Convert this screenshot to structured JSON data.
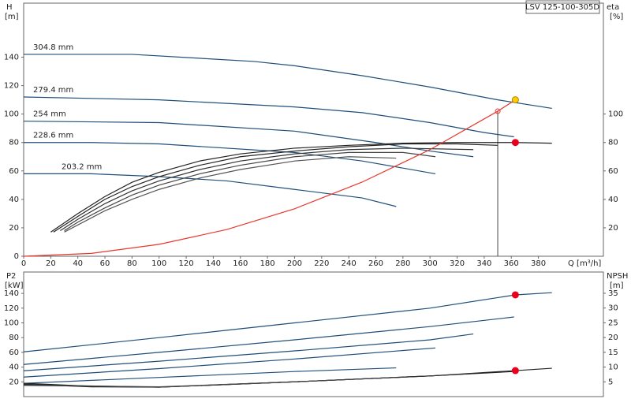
{
  "model": "LSV 125-100-305D",
  "chart_data": [
    {
      "type": "line",
      "xlabel": "Q [m³/h]",
      "ylabel": "H",
      "yunit": "[m]",
      "y2label": "eta",
      "y2unit": "[%]",
      "xlim": [
        0,
        428
      ],
      "ylim": [
        0,
        178
      ],
      "y2lim": [
        0,
        178
      ],
      "xticks": [
        0,
        20,
        40,
        60,
        80,
        100,
        120,
        140,
        160,
        180,
        200,
        220,
        240,
        260,
        280,
        300,
        320,
        340,
        360,
        380
      ],
      "yticks": [
        0,
        20,
        40,
        60,
        80,
        100,
        120,
        140
      ],
      "y2ticks": [
        20,
        40,
        60,
        80,
        100
      ],
      "series": [
        {
          "name": "304.8 mm",
          "color": "#1f4e79",
          "axis": "y",
          "x": [
            0,
            80,
            170,
            200,
            250,
            300,
            350,
            390
          ],
          "values": [
            142,
            142,
            137,
            134,
            127,
            119,
            110,
            104
          ]
        },
        {
          "name": "279.4 mm",
          "color": "#1f4e79",
          "axis": "y",
          "x": [
            0,
            100,
            200,
            250,
            300,
            340,
            362
          ],
          "values": [
            112,
            110,
            105,
            101,
            94,
            87,
            84
          ]
        },
        {
          "name": "254 mm",
          "color": "#1f4e79",
          "axis": "y",
          "x": [
            0,
            100,
            200,
            260,
            300,
            332
          ],
          "values": [
            95,
            94,
            88,
            80,
            74,
            70
          ]
        },
        {
          "name": "228.6 mm",
          "color": "#1f4e79",
          "axis": "y",
          "x": [
            0,
            50,
            100,
            200,
            250,
            304
          ],
          "values": [
            80,
            80,
            79,
            73,
            67,
            58
          ]
        },
        {
          "name": "203.2 mm",
          "color": "#1f4e79",
          "axis": "y",
          "x": [
            0,
            50,
            100,
            150,
            200,
            250,
            275
          ],
          "values": [
            58,
            58,
            56,
            53,
            47,
            41,
            35
          ]
        },
        {
          "color": "#222222",
          "axis": "y2",
          "x": [
            20,
            40,
            60,
            80,
            100,
            130,
            160,
            200,
            240,
            280,
            320,
            363,
            390
          ],
          "values": [
            17,
            30,
            42,
            52,
            59,
            67,
            72,
            76,
            78,
            79.5,
            80,
            80,
            79.5
          ]
        },
        {
          "color": "#222222",
          "axis": "y2",
          "x": [
            22,
            40,
            60,
            80,
            100,
            130,
            160,
            200,
            240,
            280,
            320,
            350
          ],
          "values": [
            17,
            28,
            40,
            49,
            56,
            64,
            70,
            74,
            77,
            79,
            79,
            78
          ]
        },
        {
          "color": "#333333",
          "axis": "y2",
          "x": [
            27,
            40,
            60,
            80,
            100,
            130,
            160,
            200,
            240,
            280,
            332
          ],
          "values": [
            18,
            26,
            37,
            46,
            53,
            61,
            67,
            72,
            75,
            76,
            75
          ]
        },
        {
          "color": "#444444",
          "axis": "y2",
          "x": [
            30,
            40,
            60,
            80,
            100,
            130,
            160,
            200,
            240,
            280,
            304
          ],
          "values": [
            18,
            24,
            34,
            43,
            50,
            58,
            64,
            70,
            73,
            73,
            70
          ]
        },
        {
          "color": "#555555",
          "axis": "y2",
          "x": [
            30,
            40,
            60,
            80,
            100,
            130,
            160,
            200,
            240,
            275
          ],
          "values": [
            17,
            22,
            32,
            40,
            47,
            55,
            61,
            67,
            70,
            69
          ]
        },
        {
          "color": "#e8372c",
          "axis": "y",
          "x": [
            0,
            50,
            100,
            150,
            200,
            250,
            300,
            350,
            363
          ],
          "values": [
            0,
            2,
            8.4,
            18.8,
            33.4,
            52.2,
            75,
            102,
            110
          ]
        }
      ],
      "markers": [
        {
          "x": 363,
          "y": 110,
          "axis": "y",
          "color": "#ffcc00"
        },
        {
          "x": 363,
          "y": 80,
          "axis": "y2",
          "color": "#e8001c"
        }
      ],
      "vline": {
        "x": 350,
        "y": 102
      }
    },
    {
      "type": "line",
      "ylabel": "P2",
      "yunit": "[kW]",
      "y2label": "NPSH",
      "y2unit": "[m]",
      "xlim": [
        0,
        428
      ],
      "ylim": [
        0,
        169
      ],
      "y2lim": [
        0,
        42.2
      ],
      "yticks": [
        20,
        40,
        60,
        80,
        100,
        120,
        140
      ],
      "y2ticks": [
        5,
        10,
        15,
        20,
        25,
        30,
        35
      ],
      "series": [
        {
          "color": "#1f4e79",
          "axis": "y",
          "x": [
            0,
            100,
            200,
            300,
            363,
            390
          ],
          "values": [
            60.7,
            80,
            100,
            120,
            138,
            141
          ]
        },
        {
          "color": "#1f4e79",
          "axis": "y",
          "x": [
            0,
            100,
            200,
            300,
            362
          ],
          "values": [
            43.6,
            60,
            77,
            95,
            108
          ]
        },
        {
          "color": "#1f4e79",
          "axis": "y",
          "x": [
            0,
            100,
            200,
            300,
            332
          ],
          "values": [
            35,
            48,
            62,
            77,
            85
          ]
        },
        {
          "color": "#1f4e79",
          "axis": "y",
          "x": [
            0,
            100,
            200,
            304
          ],
          "values": [
            26.5,
            38,
            51,
            66
          ]
        },
        {
          "color": "#1f4e79",
          "axis": "y",
          "x": [
            0,
            100,
            200,
            275
          ],
          "values": [
            18,
            26,
            34,
            39
          ]
        },
        {
          "color": "#222222",
          "axis": "y2",
          "x": [
            0,
            50,
            100,
            200,
            300,
            363,
            390
          ],
          "values": [
            4.5,
            3.5,
            3.2,
            5,
            7,
            8.8,
            9.6
          ]
        },
        {
          "color": "#222222",
          "axis": "y2",
          "x": [
            0,
            50,
            100,
            200,
            300,
            362
          ],
          "values": [
            4.2,
            3.3,
            3.2,
            5,
            7,
            8.5
          ]
        },
        {
          "color": "#333333",
          "axis": "y2",
          "x": [
            0,
            100,
            200,
            300,
            332
          ],
          "values": [
            4,
            3.2,
            5,
            7,
            7.8
          ]
        },
        {
          "color": "#444444",
          "axis": "y2",
          "x": [
            0,
            100,
            200,
            275
          ],
          "values": [
            3.8,
            3.3,
            5,
            6.5
          ]
        }
      ],
      "markers": [
        {
          "x": 363,
          "y": 138,
          "axis": "y",
          "color": "#e8001c"
        },
        {
          "x": 363,
          "y": 8.8,
          "axis": "y2",
          "color": "#e8001c"
        }
      ]
    }
  ]
}
